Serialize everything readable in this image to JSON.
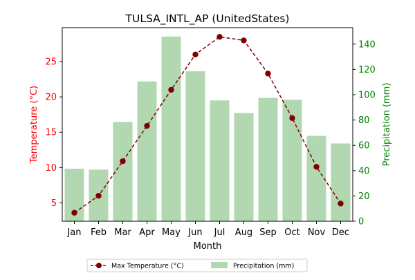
{
  "chart_data": {
    "type": "bar",
    "title": "TULSA_INTL_AP (UnitedStates)",
    "xlabel": "Month",
    "categories": [
      "Jan",
      "Feb",
      "Mar",
      "Apr",
      "May",
      "Jun",
      "Jul",
      "Aug",
      "Sep",
      "Oct",
      "Nov",
      "Dec"
    ],
    "series": [
      {
        "name": "Max Temperature (°C)",
        "type": "line",
        "axis": "left",
        "color": "#800000",
        "line_style": "dashed",
        "marker": "circle",
        "values": [
          3.6,
          6.0,
          10.9,
          15.9,
          21.0,
          26.0,
          28.5,
          28.0,
          23.3,
          17.0,
          10.1,
          4.9
        ]
      },
      {
        "name": "Precipitation (mm)",
        "type": "bar",
        "axis": "right",
        "color": "#b2d8b2",
        "values": [
          41.5,
          40.8,
          78.5,
          110.5,
          146.0,
          118.5,
          95.5,
          85.5,
          97.5,
          96.0,
          67.5,
          61.5
        ]
      }
    ],
    "y_left": {
      "label": "Temperature (°C)",
      "label_color": "#ff0000",
      "ylim": [
        2.4,
        29.8
      ],
      "ticks": [
        5,
        10,
        15,
        20,
        25
      ]
    },
    "y_right": {
      "label": "Precipitation (mm)",
      "label_color": "#008000",
      "ylim": [
        0,
        153
      ],
      "ticks": [
        0,
        20,
        40,
        60,
        80,
        100,
        120,
        140
      ]
    },
    "legend": {
      "placement": "bottom-center",
      "entries": [
        "Max Temperature (°C)",
        "Precipitation (mm)"
      ]
    },
    "grid": false
  }
}
